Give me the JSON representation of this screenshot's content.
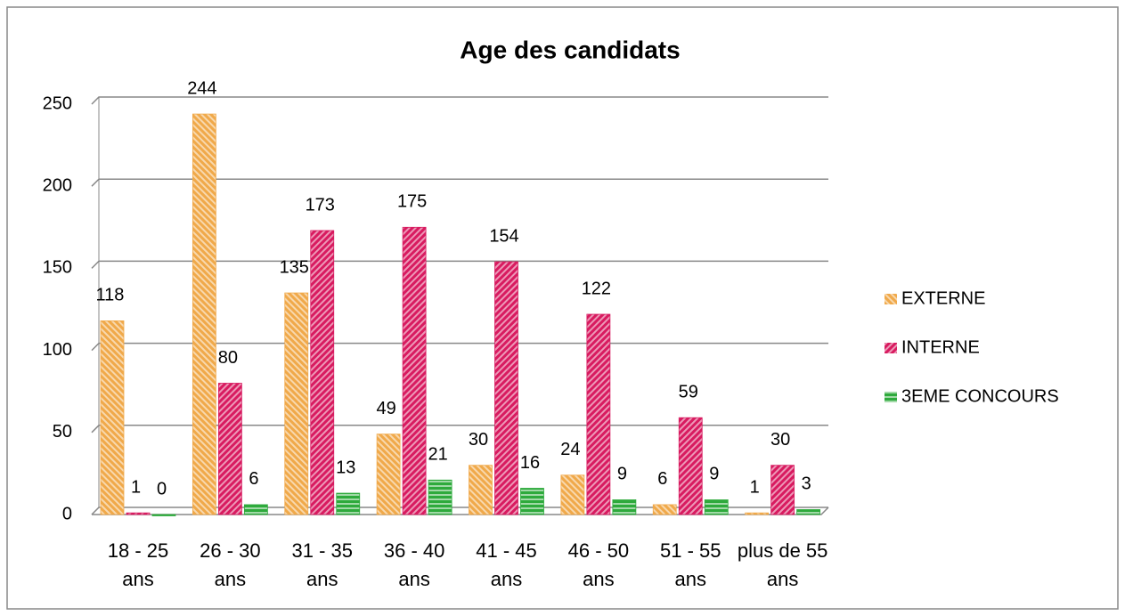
{
  "chart_data": {
    "type": "bar",
    "title": "Age des candidats",
    "categories": [
      "18 - 25 ans",
      "26 - 30 ans",
      "31 - 35 ans",
      "36 - 40 ans",
      "41 - 45 ans",
      "46 - 50 ans",
      "51 - 55 ans",
      "plus de 55 ans"
    ],
    "series": [
      {
        "name": "EXTERNE",
        "color": "#f0a94a",
        "values": [
          118,
          244,
          135,
          49,
          30,
          24,
          6,
          1
        ]
      },
      {
        "name": "INTERNE",
        "color": "#d81b60",
        "values": [
          1,
          80,
          173,
          175,
          154,
          122,
          59,
          30
        ]
      },
      {
        "name": "3EME CONCOURS",
        "color": "#2eaa3c",
        "values": [
          0,
          6,
          13,
          21,
          16,
          9,
          9,
          3
        ]
      }
    ],
    "ylim": [
      0,
      250
    ],
    "yticks": [
      0,
      50,
      100,
      150,
      200,
      250
    ],
    "grid": true,
    "legend": "right"
  }
}
